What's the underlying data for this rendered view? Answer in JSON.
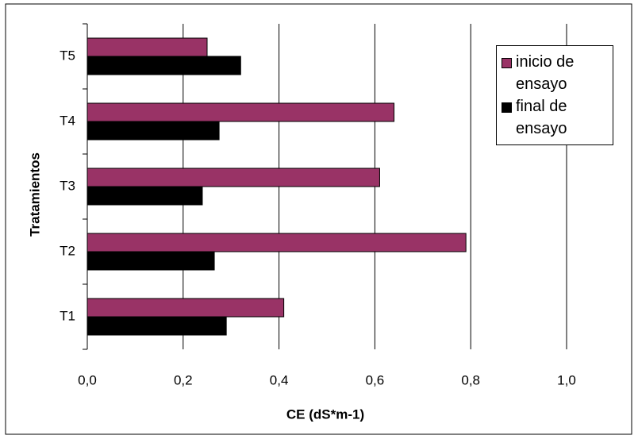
{
  "chart_data": {
    "type": "bar",
    "orientation": "horizontal",
    "categories": [
      "T1",
      "T2",
      "T3",
      "T4",
      "T5"
    ],
    "series": [
      {
        "name": "inicio de ensayo",
        "color": "#993366",
        "values": [
          0.41,
          0.79,
          0.61,
          0.64,
          0.25
        ]
      },
      {
        "name": "final de ensayo",
        "color": "#000000",
        "values": [
          0.29,
          0.265,
          0.24,
          0.275,
          0.32
        ]
      }
    ],
    "xlim": [
      0,
      1.0
    ],
    "xticks": [
      {
        "value": 0,
        "label": "0,0"
      },
      {
        "value": 0.2,
        "label": "0,2"
      },
      {
        "value": 0.4,
        "label": "0,4"
      },
      {
        "value": 0.6,
        "label": "0,6"
      },
      {
        "value": 0.8,
        "label": "0,8"
      },
      {
        "value": 1.0,
        "label": "1,0"
      }
    ],
    "xlabel": "CE (dS*m-1)",
    "ylabel": "Tratamientos",
    "grid": true,
    "legend": "top-right"
  }
}
